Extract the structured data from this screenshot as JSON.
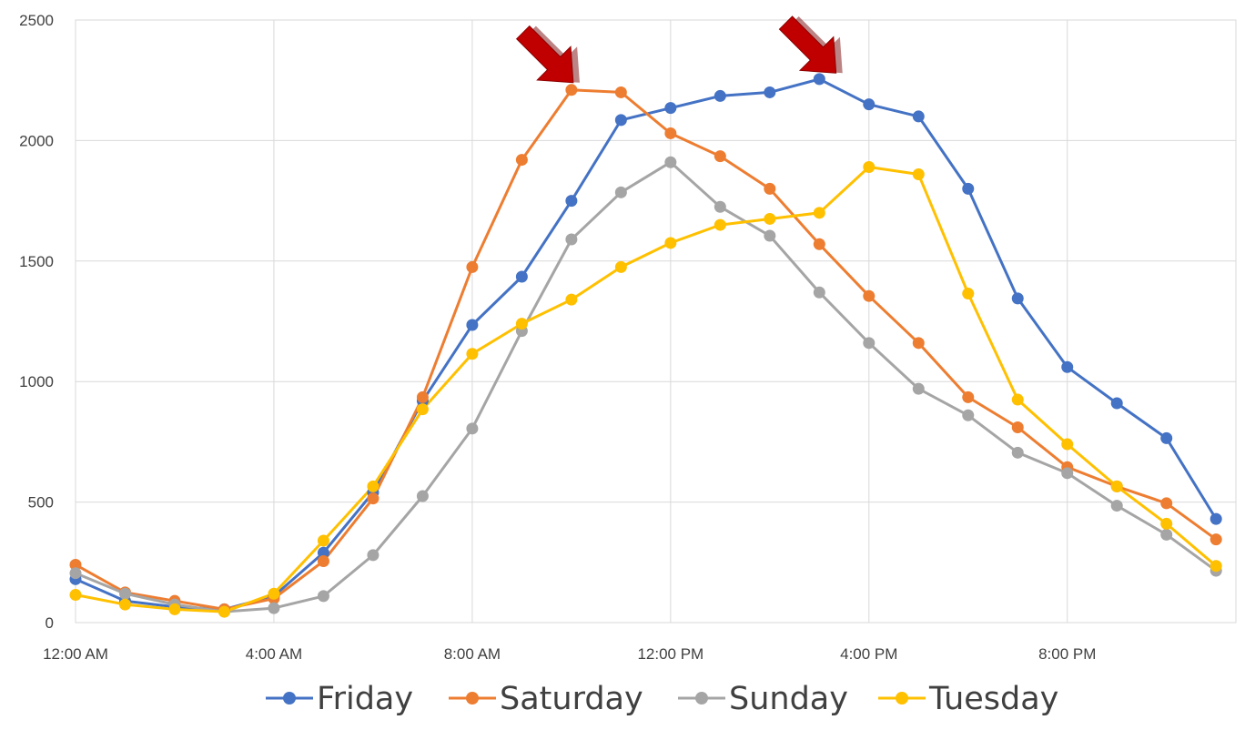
{
  "chart_data": {
    "type": "line",
    "title": "",
    "xlabel": "",
    "ylabel": "",
    "x": [
      0,
      1,
      2,
      3,
      4,
      5,
      6,
      7,
      8,
      9,
      10,
      11,
      12,
      13,
      14,
      15,
      16,
      17,
      18,
      19,
      20,
      21,
      22,
      23
    ],
    "x_tick_labels": [
      {
        "x": 0,
        "label": "12:00 AM"
      },
      {
        "x": 4,
        "label": "4:00 AM"
      },
      {
        "x": 8,
        "label": "8:00 AM"
      },
      {
        "x": 12,
        "label": "12:00 PM"
      },
      {
        "x": 16,
        "label": "4:00 PM"
      },
      {
        "x": 20,
        "label": "8:00 PM"
      }
    ],
    "xlim": [
      0,
      23.4
    ],
    "ylim": [
      0,
      2500
    ],
    "y_ticks": [
      0,
      500,
      1000,
      1500,
      2000,
      2500
    ],
    "grid": true,
    "legend_position": "bottom",
    "series": [
      {
        "name": "Friday",
        "color": "#4472C4",
        "values": [
          180,
          90,
          65,
          55,
          110,
          290,
          540,
          920,
          1235,
          1435,
          1750,
          2085,
          2135,
          2185,
          2200,
          2255,
          2150,
          2100,
          1800,
          1345,
          1060,
          910,
          765,
          430
        ]
      },
      {
        "name": "Saturday",
        "color": "#ED7D31",
        "values": [
          240,
          125,
          90,
          55,
          100,
          255,
          515,
          935,
          1475,
          1920,
          2210,
          2200,
          2030,
          1935,
          1800,
          1570,
          1355,
          1160,
          935,
          810,
          645,
          565,
          495,
          345
        ]
      },
      {
        "name": "Sunday",
        "color": "#A5A5A5",
        "values": [
          205,
          120,
          75,
          45,
          60,
          110,
          280,
          525,
          805,
          1210,
          1590,
          1785,
          1910,
          1725,
          1605,
          1370,
          1160,
          970,
          860,
          705,
          620,
          485,
          365,
          215
        ]
      },
      {
        "name": "Tuesday",
        "color": "#FFC000",
        "values": [
          115,
          75,
          55,
          45,
          120,
          340,
          565,
          885,
          1115,
          1240,
          1340,
          1475,
          1575,
          1650,
          1675,
          1700,
          1890,
          1860,
          1365,
          925,
          740,
          565,
          410,
          235
        ]
      }
    ],
    "annotations": [
      {
        "type": "arrow",
        "color": "#C00000",
        "points_to": {
          "x": 10,
          "y": 2210
        }
      },
      {
        "type": "arrow",
        "color": "#C00000",
        "points_to": {
          "x": 15.3,
          "y": 2250
        }
      }
    ]
  }
}
